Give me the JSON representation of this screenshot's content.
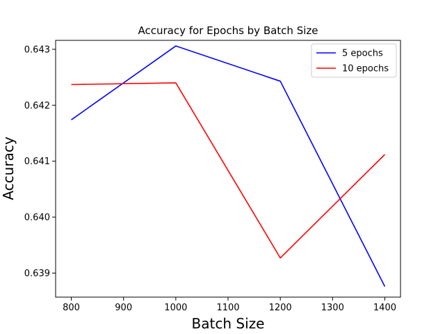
{
  "chart_data": {
    "type": "line",
    "title": "Accuracy for Epochs by Batch Size",
    "xlabel": "Batch Size",
    "ylabel": "Accuracy",
    "x": [
      800,
      1000,
      1200,
      1400
    ],
    "xlim": [
      770,
      1430
    ],
    "ylim": [
      0.63857,
      0.64316
    ],
    "xticks": [
      800,
      900,
      1000,
      1100,
      1200,
      1300,
      1400
    ],
    "xtick_labels": [
      "800",
      "900",
      "1000",
      "1100",
      "1200",
      "1300",
      "1400"
    ],
    "yticks": [
      0.639,
      0.64,
      0.641,
      0.642,
      0.643
    ],
    "ytick_labels": [
      "0.639",
      "0.640",
      "0.641",
      "0.642",
      "0.643"
    ],
    "grid": false,
    "legend": "top-right",
    "series": [
      {
        "name": "5 epochs",
        "color": "#0000ff",
        "values": [
          0.64174,
          0.64306,
          0.64243,
          0.63876
        ]
      },
      {
        "name": "10 epochs",
        "color": "#ff0000",
        "values": [
          0.64237,
          0.6424,
          0.63927,
          0.64112
        ]
      }
    ]
  }
}
